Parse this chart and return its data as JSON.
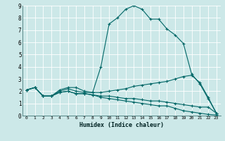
{
  "xlabel": "Humidex (Indice chaleur)",
  "ylabel": "",
  "bg_color": "#cce8e8",
  "grid_color": "#ffffff",
  "line_color": "#006666",
  "xlim": [
    -0.5,
    23.5
  ],
  "ylim": [
    0,
    9
  ],
  "xtick_labels": [
    "0",
    "1",
    "2",
    "3",
    "4",
    "5",
    "6",
    "7",
    "8",
    "9",
    "10",
    "11",
    "12",
    "13",
    "14",
    "15",
    "16",
    "17",
    "18",
    "19",
    "20",
    "21",
    "22",
    "23"
  ],
  "ytick_labels": [
    "0",
    "1",
    "2",
    "3",
    "4",
    "5",
    "6",
    "7",
    "8",
    "9"
  ],
  "line1_x": [
    0,
    1,
    2,
    3,
    4,
    5,
    6,
    7,
    8,
    9,
    10,
    11,
    12,
    13,
    14,
    15,
    16,
    17,
    18,
    19,
    20,
    21,
    22,
    23
  ],
  "line1_y": [
    2.1,
    2.3,
    1.6,
    1.6,
    2.1,
    2.3,
    2.3,
    2.0,
    1.9,
    4.0,
    7.5,
    8.0,
    8.7,
    9.0,
    8.7,
    7.9,
    7.9,
    7.1,
    6.6,
    5.9,
    3.4,
    2.6,
    1.4,
    0.2
  ],
  "line2_x": [
    0,
    1,
    2,
    3,
    4,
    5,
    6,
    7,
    8,
    9,
    10,
    11,
    12,
    13,
    14,
    15,
    16,
    17,
    18,
    19,
    20,
    21,
    22,
    23
  ],
  "line2_y": [
    2.1,
    2.3,
    1.6,
    1.6,
    2.0,
    2.2,
    2.0,
    1.9,
    1.9,
    1.9,
    2.0,
    2.1,
    2.2,
    2.4,
    2.5,
    2.6,
    2.7,
    2.8,
    3.0,
    3.2,
    3.3,
    2.7,
    1.5,
    0.2
  ],
  "line3_x": [
    0,
    1,
    2,
    3,
    4,
    5,
    6,
    7,
    8,
    9,
    10,
    11,
    12,
    13,
    14,
    15,
    16,
    17,
    18,
    19,
    20,
    21,
    22,
    23
  ],
  "line3_y": [
    2.1,
    2.3,
    1.6,
    1.6,
    1.9,
    2.0,
    1.8,
    1.8,
    1.7,
    1.6,
    1.6,
    1.5,
    1.4,
    1.4,
    1.3,
    1.2,
    1.2,
    1.1,
    1.0,
    0.9,
    0.8,
    0.7,
    0.7,
    0.2
  ],
  "line4_x": [
    0,
    1,
    2,
    3,
    4,
    5,
    6,
    7,
    8,
    9,
    10,
    11,
    12,
    13,
    14,
    15,
    16,
    17,
    18,
    19,
    20,
    21,
    22,
    23
  ],
  "line4_y": [
    2.1,
    2.3,
    1.6,
    1.6,
    1.9,
    2.0,
    1.8,
    1.8,
    1.7,
    1.5,
    1.4,
    1.3,
    1.2,
    1.1,
    1.0,
    0.9,
    0.8,
    0.8,
    0.6,
    0.4,
    0.3,
    0.2,
    0.1,
    0.05
  ]
}
